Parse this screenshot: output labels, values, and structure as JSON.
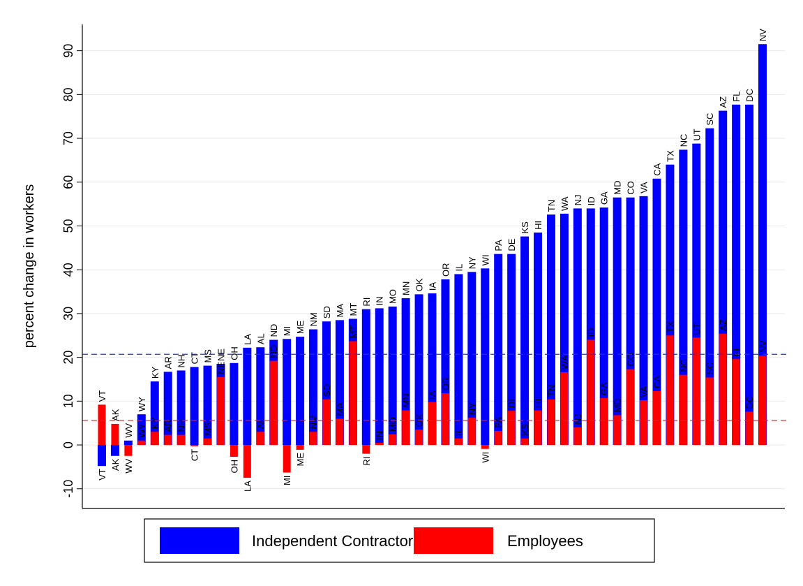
{
  "chart_data": {
    "type": "bar",
    "y_label": "percent change in workers",
    "categories": [
      "VT",
      "AK",
      "WV",
      "WY",
      "KY",
      "AR",
      "NH",
      "CT",
      "MS",
      "NE",
      "OH",
      "LA",
      "AL",
      "ND",
      "MI",
      "ME",
      "NM",
      "SD",
      "MA",
      "MT",
      "RI",
      "IN",
      "MO",
      "MN",
      "OK",
      "IA",
      "OR",
      "IL",
      "NY",
      "WI",
      "PA",
      "DE",
      "KS",
      "HI",
      "TN",
      "WA",
      "NJ",
      "ID",
      "GA",
      "MD",
      "CO",
      "VA",
      "CA",
      "TX",
      "NC",
      "UT",
      "SC",
      "AZ",
      "FL",
      "DC",
      "NV"
    ],
    "series": [
      {
        "name": "Independent Contractors",
        "color": "#0000ff",
        "values": [
          -4.8,
          -2.5,
          1.0,
          7.0,
          14.5,
          16.7,
          17.0,
          17.8,
          18.1,
          18.5,
          18.7,
          22.2,
          22.3,
          24.0,
          24.2,
          24.7,
          26.4,
          28.2,
          28.5,
          28.8,
          31.0,
          31.2,
          31.6,
          33.5,
          34.4,
          34.6,
          37.8,
          39.0,
          39.5,
          40.3,
          43.6,
          43.6,
          47.6,
          48.5,
          52.6,
          52.8,
          54.0,
          54.0,
          54.2,
          56.5,
          56.5,
          56.8,
          60.8,
          64.0,
          67.4,
          68.8,
          72.3,
          76.3,
          77.7,
          77.7,
          91.5
        ]
      },
      {
        "name": "Employees",
        "color": "#ff0000",
        "values": [
          9.2,
          4.8,
          -2.5,
          1.0,
          3.0,
          2.3,
          2.3,
          -0.3,
          1.5,
          15.5,
          -2.7,
          -7.5,
          3.0,
          19.2,
          -6.3,
          -1.1,
          3.0,
          10.4,
          6.0,
          23.7,
          -2.0,
          0.5,
          2.4,
          7.9,
          3.5,
          9.8,
          11.8,
          1.5,
          6.2,
          -0.9,
          3.2,
          7.8,
          1.5,
          7.9,
          10.4,
          16.6,
          4.0,
          24.0,
          10.7,
          6.8,
          17.3,
          10.2,
          12.3,
          25.0,
          16.0,
          24.5,
          15.4,
          25.4,
          19.6,
          7.6,
          20.4
        ]
      }
    ],
    "reference_lines": [
      {
        "value": 20.7,
        "color": "#2233cc"
      },
      {
        "value": 5.6,
        "color": "#dd2222"
      }
    ],
    "ylim": [
      -14.5,
      96
    ],
    "yticks": [
      -10,
      0,
      10,
      20,
      30,
      40,
      50,
      60,
      70,
      80,
      90
    ],
    "grid": true
  }
}
